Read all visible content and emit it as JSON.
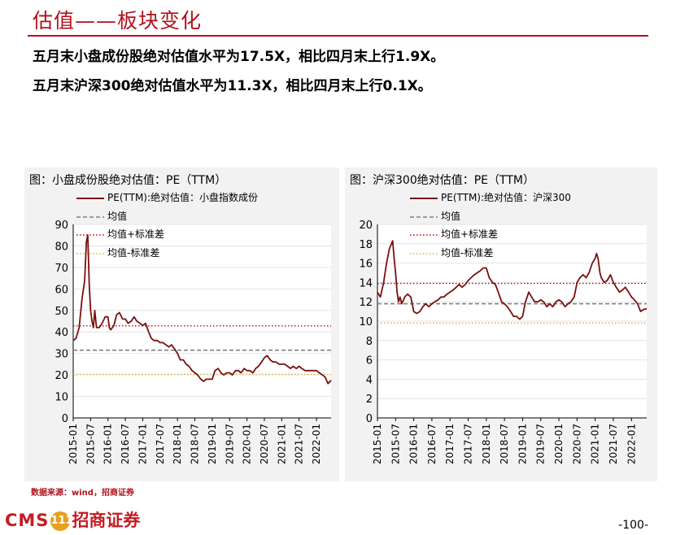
{
  "header": {
    "title": "估值——板块变化",
    "bullet1": "五月末小盘成份股绝对估值水平为17.5X，相比四月末上行1.9X。",
    "bullet2": "五月末沪深300绝对估值水平为11.3X，相比四月末上行0.1X。"
  },
  "footer": {
    "source": "数据来源：wind，招商证券",
    "logo_text": "CMS",
    "logo_coin": "111",
    "logo_cn": "招商证券",
    "page_number": "-100-"
  },
  "colors": {
    "brand": "#b1121c",
    "series": "#7a1010",
    "mean": "#808080",
    "upper": "#c00000",
    "lower": "#e0b030"
  },
  "chart_data": [
    {
      "type": "line",
      "title": "图：小盘成份股绝对估值：PE（TTM）",
      "legend": [
        "PE(TTM):绝对估值：小盘指数成份",
        "均值",
        "均值+标准差",
        "均值-标准差"
      ],
      "ylim": [
        0,
        90
      ],
      "yticks": [
        0,
        10,
        20,
        30,
        40,
        50,
        60,
        70,
        80,
        90
      ],
      "xticks": [
        "2015-01",
        "2015-07",
        "2016-01",
        "2016-07",
        "2017-01",
        "2017-07",
        "2018-01",
        "2018-07",
        "2019-01",
        "2019-07",
        "2020-01",
        "2020-07",
        "2021-01",
        "2021-07",
        "2022-01"
      ],
      "x_end": 2022.42,
      "mean": 31.5,
      "mean_plus_std": 42.8,
      "mean_minus_std": 20.3,
      "series": [
        {
          "name": "PE(TTM):绝对估值：小盘指数成份",
          "x": [
            2015.0,
            2015.08,
            2015.17,
            2015.25,
            2015.33,
            2015.38,
            2015.42,
            2015.46,
            2015.5,
            2015.54,
            2015.58,
            2015.62,
            2015.67,
            2015.75,
            2015.83,
            2015.92,
            2016.0,
            2016.04,
            2016.08,
            2016.17,
            2016.25,
            2016.33,
            2016.42,
            2016.5,
            2016.58,
            2016.67,
            2016.75,
            2016.83,
            2016.92,
            2017.0,
            2017.08,
            2017.17,
            2017.25,
            2017.33,
            2017.42,
            2017.5,
            2017.58,
            2017.67,
            2017.75,
            2017.83,
            2017.92,
            2018.0,
            2018.08,
            2018.17,
            2018.25,
            2018.33,
            2018.42,
            2018.5,
            2018.58,
            2018.67,
            2018.75,
            2018.83,
            2018.92,
            2019.0,
            2019.08,
            2019.17,
            2019.25,
            2019.33,
            2019.42,
            2019.5,
            2019.58,
            2019.67,
            2019.75,
            2019.83,
            2019.92,
            2020.0,
            2020.08,
            2020.17,
            2020.25,
            2020.33,
            2020.42,
            2020.5,
            2020.58,
            2020.67,
            2020.75,
            2020.83,
            2020.92,
            2021.0,
            2021.08,
            2021.17,
            2021.25,
            2021.33,
            2021.42,
            2021.5,
            2021.58,
            2021.67,
            2021.75,
            2021.83,
            2021.92,
            2022.0,
            2022.08,
            2022.17,
            2022.25,
            2022.33,
            2022.42
          ],
          "y": [
            36,
            37,
            42,
            55,
            64,
            82,
            85,
            62,
            50,
            45,
            42,
            50,
            42,
            42,
            44,
            47,
            47,
            42,
            41,
            43,
            48,
            49,
            46,
            46,
            44,
            45,
            47,
            45,
            44,
            43,
            44,
            40,
            37,
            36,
            36,
            35,
            35,
            34,
            33,
            34,
            32,
            30,
            27,
            27,
            25,
            24,
            22,
            21,
            20,
            18,
            17,
            18,
            18,
            18,
            22,
            23,
            21,
            20,
            21,
            21,
            20,
            22,
            22,
            21,
            23,
            22,
            22,
            21,
            23,
            24,
            26,
            28,
            29,
            27,
            26,
            26,
            25,
            25,
            25,
            24,
            23,
            24,
            23,
            24,
            23,
            22,
            22,
            22,
            22,
            22,
            21,
            20,
            19,
            16,
            17.5
          ]
        }
      ]
    },
    {
      "type": "line",
      "title": "图：沪深300绝对估值：PE（TTM）",
      "legend": [
        "PE(TTM):绝对估值：沪深300",
        "均值",
        "均值+标准差",
        "均值-标准差"
      ],
      "ylim": [
        0,
        20
      ],
      "yticks": [
        0,
        2,
        4,
        6,
        8,
        10,
        12,
        14,
        16,
        18,
        20
      ],
      "xticks": [
        "2015-01",
        "2015-07",
        "2016-01",
        "2016-07",
        "2017-01",
        "2017-07",
        "2018-01",
        "2018-07",
        "2019-01",
        "2019-07",
        "2020-01",
        "2020-07",
        "2021-01",
        "2021-07",
        "2022-01"
      ],
      "x_end": 2022.42,
      "mean": 11.8,
      "mean_plus_std": 13.9,
      "mean_minus_std": 9.8,
      "series": [
        {
          "name": "PE(TTM):绝对估值：沪深300",
          "x": [
            2015.0,
            2015.08,
            2015.17,
            2015.25,
            2015.33,
            2015.42,
            2015.46,
            2015.5,
            2015.54,
            2015.58,
            2015.62,
            2015.67,
            2015.75,
            2015.83,
            2015.92,
            2016.0,
            2016.08,
            2016.17,
            2016.25,
            2016.33,
            2016.42,
            2016.5,
            2016.58,
            2016.67,
            2016.75,
            2016.83,
            2016.92,
            2017.0,
            2017.08,
            2017.17,
            2017.25,
            2017.33,
            2017.42,
            2017.5,
            2017.58,
            2017.67,
            2017.75,
            2017.83,
            2017.92,
            2018.0,
            2018.08,
            2018.17,
            2018.25,
            2018.33,
            2018.42,
            2018.5,
            2018.58,
            2018.67,
            2018.75,
            2018.83,
            2018.92,
            2019.0,
            2019.08,
            2019.17,
            2019.25,
            2019.33,
            2019.42,
            2019.5,
            2019.58,
            2019.67,
            2019.75,
            2019.83,
            2019.92,
            2020.0,
            2020.08,
            2020.17,
            2020.25,
            2020.33,
            2020.42,
            2020.5,
            2020.58,
            2020.67,
            2020.75,
            2020.83,
            2020.92,
            2021.0,
            2021.04,
            2021.08,
            2021.13,
            2021.17,
            2021.25,
            2021.33,
            2021.42,
            2021.5,
            2021.58,
            2021.67,
            2021.75,
            2021.83,
            2021.92,
            2022.0,
            2022.08,
            2022.17,
            2022.25,
            2022.33,
            2022.42
          ],
          "y": [
            13,
            12.5,
            14,
            16,
            17.5,
            18.3,
            16.5,
            15,
            13,
            12,
            12.5,
            11.8,
            12.5,
            12.8,
            12.5,
            11,
            10.8,
            11,
            11.5,
            11.8,
            11.5,
            11.8,
            12,
            12.2,
            12.5,
            12.5,
            12.8,
            13,
            13.2,
            13.5,
            13.8,
            13.5,
            13.8,
            14.2,
            14.5,
            14.8,
            15,
            15.2,
            15.5,
            15.5,
            14.5,
            14,
            13.8,
            13,
            12,
            11.8,
            11.5,
            11,
            10.5,
            10.5,
            10.2,
            10.5,
            12,
            13,
            12.5,
            12,
            12,
            12.2,
            12,
            11.5,
            11.8,
            11.5,
            12,
            12.2,
            12,
            11.5,
            11.8,
            12,
            12.5,
            14,
            14.5,
            14.8,
            14.5,
            15,
            16,
            16.5,
            17,
            16.5,
            15,
            14.5,
            14,
            14.2,
            14.8,
            14,
            13.5,
            13,
            13.2,
            13.5,
            13,
            12.5,
            12.2,
            11.8,
            11,
            11.2,
            11.3
          ]
        }
      ]
    }
  ]
}
